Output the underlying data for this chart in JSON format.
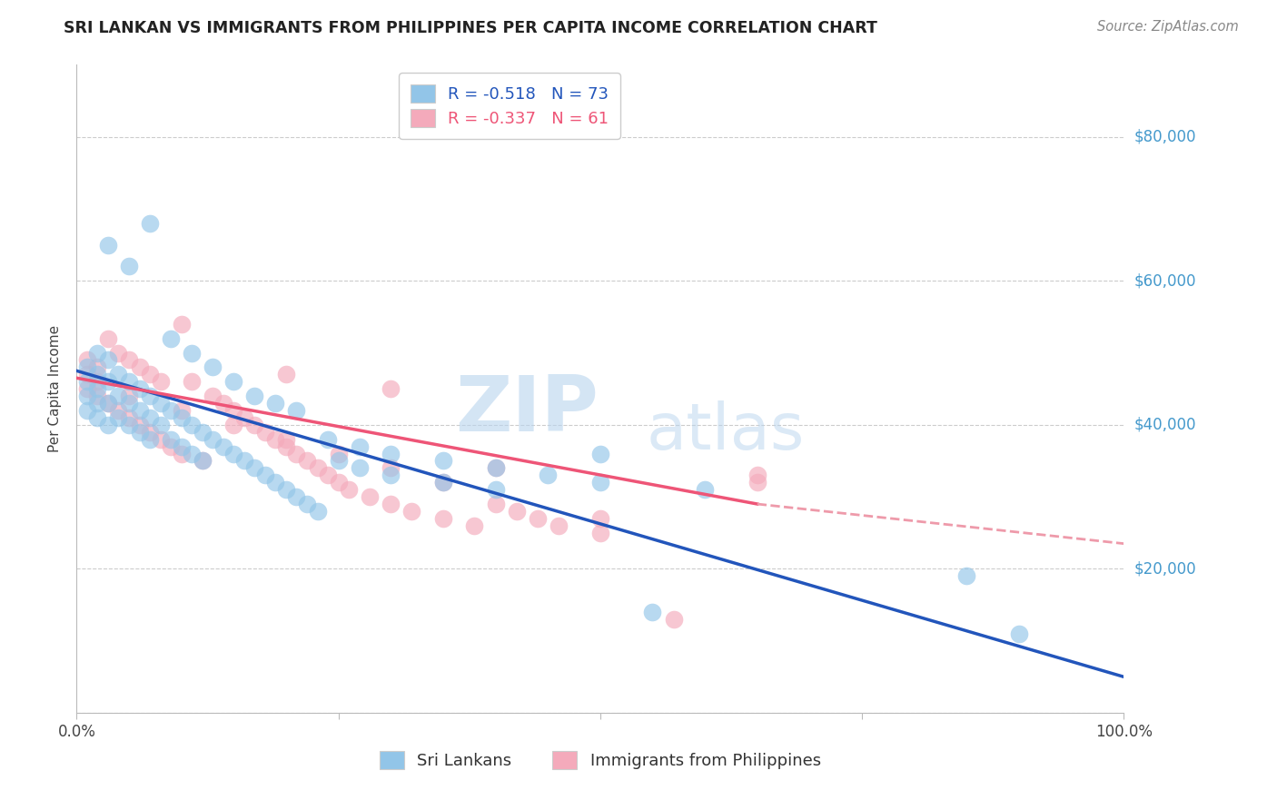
{
  "title": "SRI LANKAN VS IMMIGRANTS FROM PHILIPPINES PER CAPITA INCOME CORRELATION CHART",
  "source": "Source: ZipAtlas.com",
  "ylabel": "Per Capita Income",
  "y_ticks": [
    0,
    20000,
    40000,
    60000,
    80000
  ],
  "y_tick_labels": [
    "",
    "$20,000",
    "$40,000",
    "$60,000",
    "$80,000"
  ],
  "x_range": [
    0,
    100
  ],
  "y_range": [
    0,
    90000
  ],
  "blue_color": "#92C5E8",
  "pink_color": "#F4AABB",
  "blue_line_color": "#2255BB",
  "pink_line_color": "#EE5577",
  "pink_line_dashed_color": "#EE9AAA",
  "R_blue": -0.518,
  "N_blue": 73,
  "R_pink": -0.337,
  "N_pink": 61,
  "legend_label_blue": "Sri Lankans",
  "legend_label_pink": "Immigrants from Philippines",
  "watermark_zip": "ZIP",
  "watermark_atlas": "atlas",
  "background_color": "#FFFFFF",
  "title_color": "#222222",
  "axis_label_color": "#4499CC",
  "grid_color": "#CCCCCC",
  "title_fontsize": 12.5,
  "blue_reg_x0": 0,
  "blue_reg_y0": 47500,
  "blue_reg_x1": 100,
  "blue_reg_y1": 5000,
  "pink_reg_x0": 0,
  "pink_reg_y0": 46500,
  "pink_reg_x1": 65,
  "pink_reg_y1": 29000,
  "pink_dash_x0": 65,
  "pink_dash_y0": 29000,
  "pink_dash_x1": 100,
  "pink_dash_y1": 23500,
  "blue_scatter_x": [
    1,
    1,
    1,
    1,
    2,
    2,
    2,
    2,
    2,
    3,
    3,
    3,
    3,
    4,
    4,
    4,
    5,
    5,
    5,
    6,
    6,
    6,
    7,
    7,
    7,
    8,
    8,
    9,
    9,
    10,
    10,
    11,
    11,
    12,
    12,
    13,
    14,
    15,
    16,
    17,
    18,
    19,
    20,
    21,
    22,
    23,
    25,
    27,
    30,
    35,
    40,
    50,
    55,
    85,
    90,
    3,
    5,
    7,
    9,
    11,
    13,
    15,
    17,
    19,
    21,
    24,
    27,
    30,
    35,
    40,
    45,
    50,
    60
  ],
  "blue_scatter_y": [
    48000,
    46000,
    44000,
    42000,
    50000,
    47000,
    45000,
    43000,
    41000,
    49000,
    46000,
    43000,
    40000,
    47000,
    44000,
    41000,
    46000,
    43000,
    40000,
    45000,
    42000,
    39000,
    44000,
    41000,
    38000,
    43000,
    40000,
    42000,
    38000,
    41000,
    37000,
    40000,
    36000,
    39000,
    35000,
    38000,
    37000,
    36000,
    35000,
    34000,
    33000,
    32000,
    31000,
    30000,
    29000,
    28000,
    35000,
    34000,
    33000,
    32000,
    31000,
    36000,
    14000,
    19000,
    11000,
    65000,
    62000,
    68000,
    52000,
    50000,
    48000,
    46000,
    44000,
    43000,
    42000,
    38000,
    37000,
    36000,
    35000,
    34000,
    33000,
    32000,
    31000
  ],
  "pink_scatter_x": [
    1,
    1,
    1,
    2,
    2,
    2,
    3,
    3,
    4,
    4,
    5,
    5,
    6,
    6,
    7,
    7,
    8,
    8,
    9,
    10,
    11,
    12,
    13,
    14,
    15,
    16,
    17,
    18,
    19,
    20,
    21,
    22,
    23,
    24,
    25,
    26,
    28,
    30,
    32,
    35,
    38,
    40,
    42,
    44,
    46,
    50,
    57,
    65,
    5,
    10,
    15,
    20,
    25,
    30,
    35,
    10,
    20,
    30,
    40,
    50,
    65
  ],
  "pink_scatter_y": [
    49000,
    47000,
    45000,
    48000,
    46000,
    44000,
    52000,
    43000,
    50000,
    42000,
    49000,
    41000,
    48000,
    40000,
    47000,
    39000,
    46000,
    38000,
    37000,
    36000,
    46000,
    35000,
    44000,
    43000,
    42000,
    41000,
    40000,
    39000,
    38000,
    37000,
    36000,
    35000,
    34000,
    33000,
    32000,
    31000,
    30000,
    29000,
    28000,
    27000,
    26000,
    29000,
    28000,
    27000,
    26000,
    25000,
    13000,
    33000,
    44000,
    42000,
    40000,
    38000,
    36000,
    34000,
    32000,
    54000,
    47000,
    45000,
    34000,
    27000,
    32000
  ]
}
